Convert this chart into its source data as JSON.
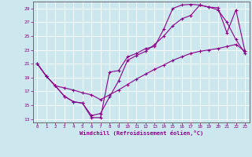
{
  "xlabel": "Windchill (Refroidissement éolien,°C)",
  "bg_color": "#cce8ee",
  "grid_color": "#ffffff",
  "line_color": "#880088",
  "xlim": [
    -0.5,
    23.5
  ],
  "ylim": [
    12.5,
    30.0
  ],
  "xticks": [
    0,
    1,
    2,
    3,
    4,
    5,
    6,
    7,
    8,
    9,
    10,
    11,
    12,
    13,
    14,
    15,
    16,
    17,
    18,
    19,
    20,
    21,
    22,
    23
  ],
  "yticks": [
    13,
    15,
    17,
    19,
    21,
    23,
    25,
    27,
    29
  ],
  "line1_x": [
    0,
    1,
    2,
    3,
    4,
    5,
    6,
    7,
    8,
    9,
    10,
    11,
    12,
    13,
    14,
    15,
    16,
    17,
    18,
    19,
    20,
    21,
    22,
    23
  ],
  "line1_y": [
    21,
    19.2,
    17.8,
    16.3,
    15.5,
    15.3,
    13.2,
    13.2,
    19.8,
    20.0,
    22.0,
    22.5,
    23.2,
    23.5,
    26.0,
    29.0,
    29.5,
    29.6,
    29.5,
    29.2,
    29.1,
    25.5,
    28.8,
    22.8
  ],
  "line2_x": [
    0,
    1,
    2,
    3,
    4,
    5,
    6,
    7,
    8,
    9,
    10,
    11,
    12,
    13,
    14,
    15,
    16,
    17,
    18,
    19,
    20,
    21,
    22,
    23
  ],
  "line2_y": [
    21,
    19.2,
    17.8,
    16.3,
    15.5,
    15.3,
    13.5,
    13.8,
    16.2,
    18.5,
    21.5,
    22.2,
    22.8,
    23.8,
    25.0,
    26.5,
    27.5,
    28.0,
    29.5,
    29.2,
    28.8,
    27.0,
    24.5,
    22.5
  ],
  "line3_x": [
    0,
    1,
    2,
    3,
    4,
    5,
    6,
    7,
    8,
    9,
    10,
    11,
    12,
    13,
    14,
    15,
    16,
    17,
    18,
    19,
    20,
    21,
    22,
    23
  ],
  "line3_y": [
    21,
    19.2,
    17.8,
    17.5,
    17.2,
    16.8,
    16.5,
    15.8,
    16.5,
    17.2,
    18.0,
    18.8,
    19.5,
    20.2,
    20.8,
    21.5,
    22.0,
    22.5,
    22.8,
    23.0,
    23.2,
    23.5,
    23.8,
    22.8
  ]
}
